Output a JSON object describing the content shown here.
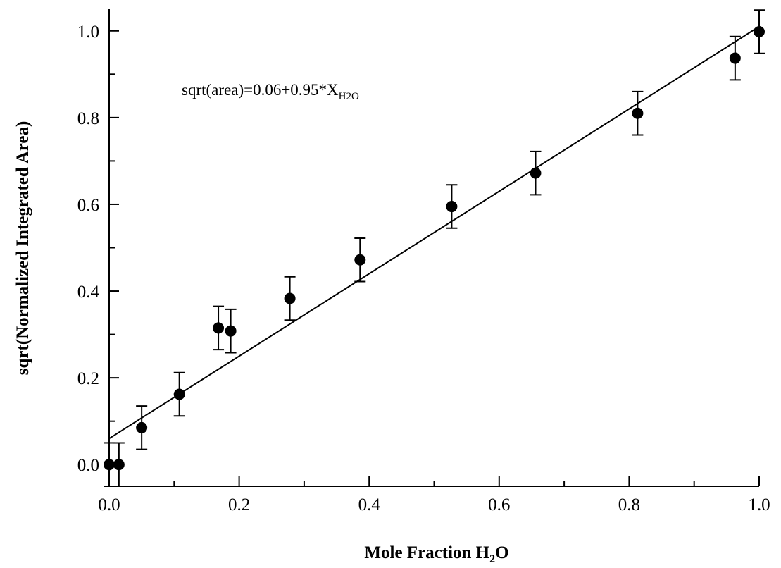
{
  "chart_data": {
    "type": "scatter",
    "xlabel": "Mole Fraction H",
    "xlabel_sub": "2",
    "xlabel_tail": "O",
    "ylabel": "sqrt(Normalized Integrated Area)",
    "xlim": [
      0.0,
      1.0
    ],
    "ylim": [
      -0.05,
      1.05
    ],
    "x_ticks": [
      0.0,
      0.2,
      0.4,
      0.6,
      0.8,
      1.0
    ],
    "x_tick_labels": [
      "0.0",
      "0.2",
      "0.4",
      "0.6",
      "0.8",
      "1.0"
    ],
    "y_ticks": [
      0.0,
      0.2,
      0.4,
      0.6,
      0.8,
      1.0
    ],
    "y_tick_labels": [
      "0.0",
      "0.2",
      "0.4",
      "0.6",
      "0.8",
      "1.0"
    ],
    "grid": false,
    "legend": "none",
    "annotation": {
      "text_main": "sqrt(area)=0.06+0.95*X",
      "text_sub": "H2O"
    },
    "points": [
      {
        "x": 0.0,
        "y": 0.0,
        "err": 0.05
      },
      {
        "x": 0.015,
        "y": 0.0,
        "err": 0.05
      },
      {
        "x": 0.05,
        "y": 0.085,
        "err": 0.05
      },
      {
        "x": 0.108,
        "y": 0.162,
        "err": 0.05
      },
      {
        "x": 0.168,
        "y": 0.315,
        "err": 0.05
      },
      {
        "x": 0.187,
        "y": 0.308,
        "err": 0.05
      },
      {
        "x": 0.278,
        "y": 0.383,
        "err": 0.05
      },
      {
        "x": 0.386,
        "y": 0.472,
        "err": 0.05
      },
      {
        "x": 0.527,
        "y": 0.595,
        "err": 0.05
      },
      {
        "x": 0.656,
        "y": 0.672,
        "err": 0.05
      },
      {
        "x": 0.813,
        "y": 0.81,
        "err": 0.05
      },
      {
        "x": 0.963,
        "y": 0.937,
        "err": 0.05
      },
      {
        "x": 1.0,
        "y": 0.998,
        "err": 0.05
      }
    ],
    "fit": {
      "intercept": 0.06,
      "slope": 0.95
    }
  }
}
